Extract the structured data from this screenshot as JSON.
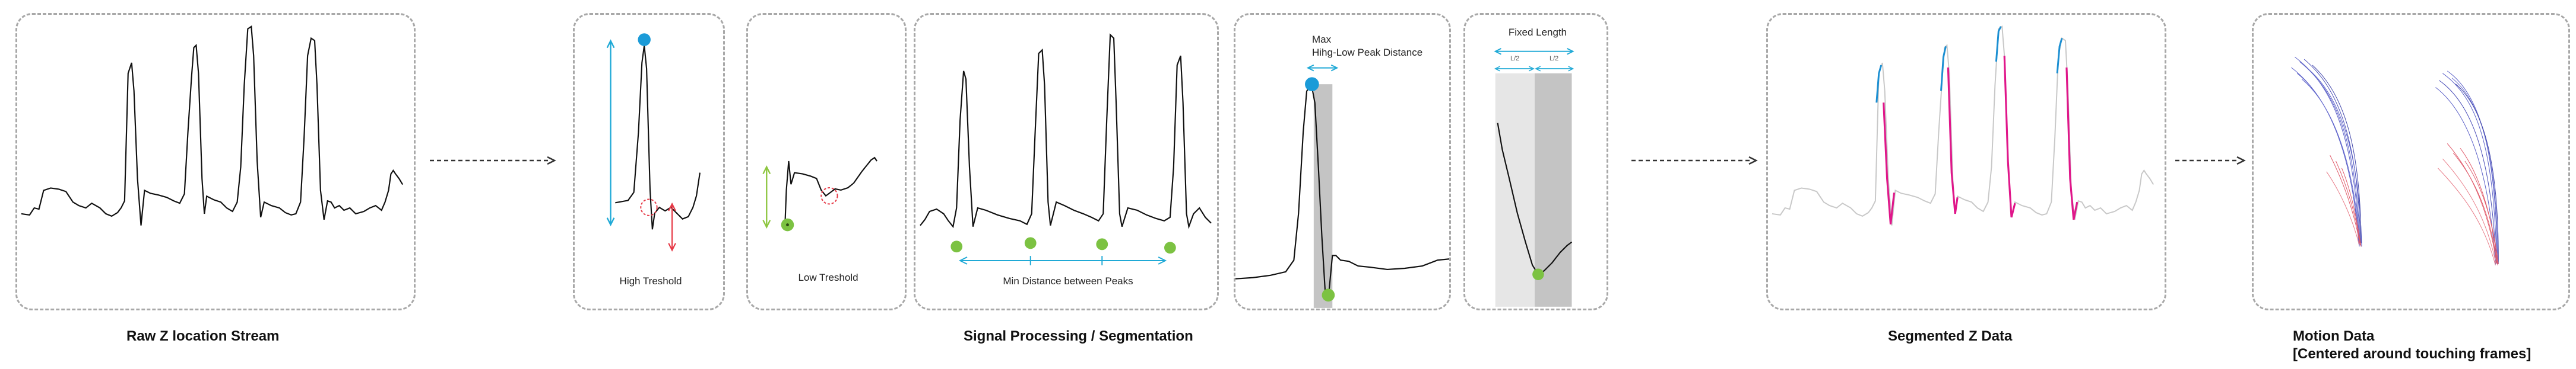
{
  "sections": {
    "raw": "Raw Z location Stream",
    "processing": "Signal Processing / Segmentation",
    "segmented": "Segmented Z Data",
    "motion_line1": "Motion Data",
    "motion_line2": "[Centered around touching frames]"
  },
  "panels": {
    "high_threshold": "High Treshold",
    "low_threshold": "Low Treshold",
    "min_distance": "Min Distance between Peaks",
    "max_distance_line1": "Max",
    "max_distance_line2": "Hihg-Low Peak Distance",
    "fixed_length": "Fixed Length",
    "half_left": "L/2",
    "half_right": "L/2"
  },
  "colors": {
    "signal": "#111111",
    "high_marker": "#1b9bd8",
    "low_marker": "#7cc242",
    "threshold_arrow": "#1fa9d6",
    "low_arrow": "#8dc63f",
    "distance_arrow": "#e63946",
    "segment_fade": "#c8c8c8",
    "segment_high": "#1b8fd2",
    "segment_low": "#e0168a",
    "motion_blue": "#5a5fc7",
    "motion_red": "#e05b6b",
    "shade_dark": "#c4c4c4",
    "shade_light": "#e6e6e6"
  },
  "icons": [
    "dashed-flow-arrow-icon",
    "peak-marker-icon",
    "trough-marker-icon",
    "double-arrow-icon",
    "search-circle-icon"
  ]
}
